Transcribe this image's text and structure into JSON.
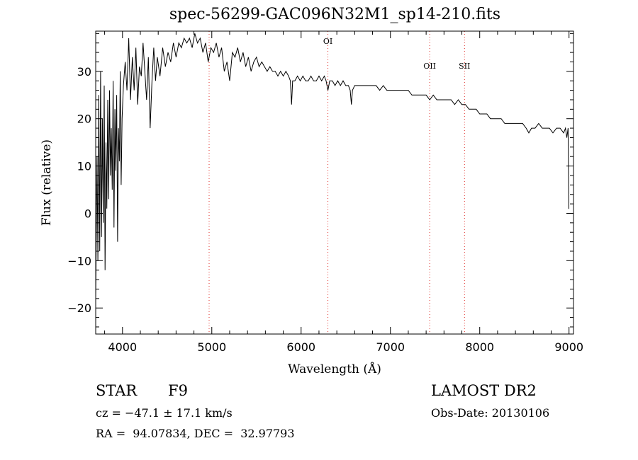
{
  "chart_data": {
    "type": "line",
    "title": "spec-56299-GAC096N32M1_sp14-210.fits",
    "xlabel": "Wavelength (Å)",
    "ylabel": "Flux (relative)",
    "xlim": [
      3700,
      9050
    ],
    "ylim": [
      -25.5,
      38.5
    ],
    "xticks": [
      "4000",
      "5000",
      "6000",
      "7000",
      "8000",
      "9000"
    ],
    "yticks": [
      "-20",
      "-10",
      "0",
      "10",
      "20",
      "30"
    ],
    "grid": false,
    "line_markers": [
      {
        "x": 4970,
        "label": ""
      },
      {
        "x": 6300,
        "label": "OI"
      },
      {
        "x": 7440,
        "label": "OII"
      },
      {
        "x": 7830,
        "label": "SII"
      }
    ],
    "series": [
      {
        "color": "#000000",
        "points": [
          [
            3700,
            -18
          ],
          [
            3715,
            12
          ],
          [
            3725,
            -10
          ],
          [
            3735,
            25
          ],
          [
            3745,
            -8
          ],
          [
            3755,
            30
          ],
          [
            3765,
            -5
          ],
          [
            3775,
            20
          ],
          [
            3785,
            -2
          ],
          [
            3795,
            27
          ],
          [
            3805,
            -12
          ],
          [
            3815,
            15
          ],
          [
            3825,
            1
          ],
          [
            3835,
            24
          ],
          [
            3845,
            3
          ],
          [
            3855,
            26
          ],
          [
            3865,
            8
          ],
          [
            3875,
            18
          ],
          [
            3885,
            5
          ],
          [
            3895,
            28
          ],
          [
            3905,
            -3
          ],
          [
            3915,
            22
          ],
          [
            3925,
            9
          ],
          [
            3935,
            25
          ],
          [
            3945,
            -6
          ],
          [
            3955,
            18
          ],
          [
            3965,
            11
          ],
          [
            3975,
            30
          ],
          [
            3985,
            6
          ],
          [
            3995,
            20
          ],
          [
            4010,
            27
          ],
          [
            4030,
            32
          ],
          [
            4050,
            26
          ],
          [
            4070,
            37
          ],
          [
            4090,
            24
          ],
          [
            4110,
            33
          ],
          [
            4130,
            26
          ],
          [
            4150,
            35
          ],
          [
            4170,
            23
          ],
          [
            4190,
            31
          ],
          [
            4210,
            29
          ],
          [
            4230,
            36
          ],
          [
            4250,
            30
          ],
          [
            4270,
            24
          ],
          [
            4290,
            33
          ],
          [
            4310,
            18
          ],
          [
            4330,
            28
          ],
          [
            4350,
            35
          ],
          [
            4370,
            28
          ],
          [
            4390,
            33
          ],
          [
            4420,
            29
          ],
          [
            4450,
            35
          ],
          [
            4480,
            31
          ],
          [
            4510,
            34
          ],
          [
            4540,
            32
          ],
          [
            4570,
            36
          ],
          [
            4600,
            33
          ],
          [
            4630,
            36
          ],
          [
            4660,
            35
          ],
          [
            4690,
            37
          ],
          [
            4720,
            36
          ],
          [
            4750,
            37
          ],
          [
            4780,
            35
          ],
          [
            4810,
            38
          ],
          [
            4840,
            36
          ],
          [
            4870,
            37
          ],
          [
            4900,
            34
          ],
          [
            4930,
            36
          ],
          [
            4960,
            32
          ],
          [
            4990,
            35
          ],
          [
            5020,
            34
          ],
          [
            5050,
            36
          ],
          [
            5080,
            33
          ],
          [
            5110,
            35
          ],
          [
            5140,
            30
          ],
          [
            5170,
            32
          ],
          [
            5200,
            28
          ],
          [
            5230,
            34
          ],
          [
            5260,
            33
          ],
          [
            5290,
            35
          ],
          [
            5320,
            32
          ],
          [
            5350,
            34
          ],
          [
            5380,
            31
          ],
          [
            5410,
            33
          ],
          [
            5440,
            30
          ],
          [
            5470,
            32
          ],
          [
            5500,
            33
          ],
          [
            5530,
            31
          ],
          [
            5560,
            32
          ],
          [
            5590,
            31
          ],
          [
            5620,
            30
          ],
          [
            5650,
            31
          ],
          [
            5680,
            30
          ],
          [
            5710,
            30
          ],
          [
            5740,
            29
          ],
          [
            5770,
            30
          ],
          [
            5800,
            29
          ],
          [
            5830,
            30
          ],
          [
            5860,
            29
          ],
          [
            5880,
            28
          ],
          [
            5893,
            23
          ],
          [
            5905,
            28
          ],
          [
            5930,
            28
          ],
          [
            5960,
            29
          ],
          [
            5990,
            28
          ],
          [
            6020,
            29
          ],
          [
            6050,
            28
          ],
          [
            6080,
            28
          ],
          [
            6110,
            29
          ],
          [
            6140,
            28
          ],
          [
            6170,
            28
          ],
          [
            6200,
            29
          ],
          [
            6230,
            28
          ],
          [
            6260,
            29
          ],
          [
            6280,
            28
          ],
          [
            6300,
            26
          ],
          [
            6320,
            28
          ],
          [
            6350,
            28
          ],
          [
            6380,
            27
          ],
          [
            6410,
            28
          ],
          [
            6440,
            27
          ],
          [
            6470,
            28
          ],
          [
            6500,
            27
          ],
          [
            6530,
            27
          ],
          [
            6550,
            26
          ],
          [
            6563,
            23
          ],
          [
            6575,
            26
          ],
          [
            6600,
            27
          ],
          [
            6640,
            27
          ],
          [
            6680,
            27
          ],
          [
            6720,
            27
          ],
          [
            6760,
            27
          ],
          [
            6800,
            27
          ],
          [
            6840,
            27
          ],
          [
            6880,
            26
          ],
          [
            6920,
            27
          ],
          [
            6960,
            26
          ],
          [
            7000,
            26
          ],
          [
            7040,
            26
          ],
          [
            7080,
            26
          ],
          [
            7120,
            26
          ],
          [
            7160,
            26
          ],
          [
            7200,
            26
          ],
          [
            7240,
            25
          ],
          [
            7280,
            25
          ],
          [
            7320,
            25
          ],
          [
            7360,
            25
          ],
          [
            7400,
            25
          ],
          [
            7440,
            24
          ],
          [
            7480,
            25
          ],
          [
            7520,
            24
          ],
          [
            7560,
            24
          ],
          [
            7600,
            24
          ],
          [
            7640,
            24
          ],
          [
            7680,
            24
          ],
          [
            7720,
            23
          ],
          [
            7760,
            24
          ],
          [
            7800,
            23
          ],
          [
            7840,
            23
          ],
          [
            7880,
            22
          ],
          [
            7920,
            22
          ],
          [
            7960,
            22
          ],
          [
            8000,
            21
          ],
          [
            8040,
            21
          ],
          [
            8080,
            21
          ],
          [
            8120,
            20
          ],
          [
            8160,
            20
          ],
          [
            8200,
            20
          ],
          [
            8240,
            20
          ],
          [
            8280,
            19
          ],
          [
            8320,
            19
          ],
          [
            8360,
            19
          ],
          [
            8400,
            19
          ],
          [
            8440,
            19
          ],
          [
            8480,
            19
          ],
          [
            8520,
            18
          ],
          [
            8550,
            17
          ],
          [
            8580,
            18
          ],
          [
            8620,
            18
          ],
          [
            8660,
            19
          ],
          [
            8700,
            18
          ],
          [
            8740,
            18
          ],
          [
            8780,
            18
          ],
          [
            8820,
            17
          ],
          [
            8860,
            18
          ],
          [
            8900,
            18
          ],
          [
            8940,
            17
          ],
          [
            8960,
            18
          ],
          [
            8975,
            16
          ],
          [
            8990,
            18
          ],
          [
            8998,
            1
          ],
          [
            9000,
            1
          ]
        ]
      }
    ]
  },
  "footer": {
    "object_class": "STAR",
    "subclass": "F9",
    "cz": "cz = −47.1 ± 17.1 km/s",
    "coords": "RA =  94.07834, DEC =  32.97793",
    "survey": "LAMOST DR2",
    "obs_date": "Obs-Date: 20130106"
  }
}
